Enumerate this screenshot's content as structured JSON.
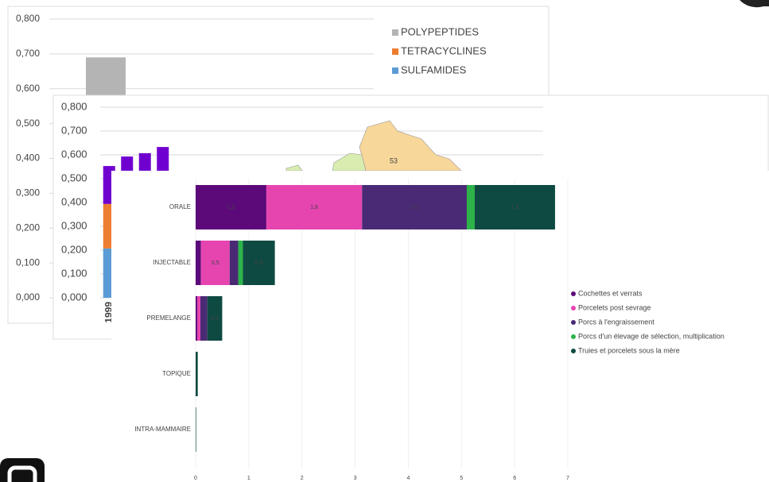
{
  "chart_data": [
    {
      "type": "bar",
      "categories": [
        null
      ],
      "series": [
        {
          "name": "SULFAMIDES",
          "color": "#5b9bd5",
          "values": [
            0.2
          ]
        },
        {
          "name": "TETRACYCLINES",
          "color": "#ed7d31",
          "values": [
            0.18
          ]
        },
        {
          "name": "POLYPEPTIDES",
          "color": "#b4b4b4",
          "values": [
            0.31
          ]
        }
      ],
      "ylim": [
        0,
        0.8
      ],
      "yticks": [
        {
          "value": 0,
          "label": "0,000"
        },
        {
          "value": 0.1,
          "label": "0,100"
        },
        {
          "value": 0.2,
          "label": "0,200"
        },
        {
          "value": 0.3,
          "label": "0,300"
        },
        {
          "value": 0.4,
          "label": "0,400"
        },
        {
          "value": 0.5,
          "label": "0,500"
        },
        {
          "value": 0.6,
          "label": "0,600"
        },
        {
          "value": 0.7,
          "label": "0,700"
        },
        {
          "value": 0.8,
          "label": "0,800"
        }
      ],
      "grid": true,
      "legend": "top-right"
    },
    {
      "type": "bar",
      "categories": [
        "1999",
        null,
        null,
        null
      ],
      "series": [
        {
          "color": "#5b9bd5",
          "values": [
            0.207,
            0.21,
            0.21,
            0.21
          ]
        },
        {
          "color": "#ed7d31",
          "values": [
            0.187,
            0.19,
            0.19,
            0.2
          ]
        },
        {
          "color": "#7000d0",
          "values": [
            0.159,
            0.193,
            0.207,
            0.223
          ]
        }
      ],
      "ylim": [
        0,
        0.8
      ],
      "yticks": [
        {
          "value": 0,
          "label": "0,000"
        },
        {
          "value": 0.1,
          "label": "0,100"
        },
        {
          "value": 0.2,
          "label": "0,200"
        },
        {
          "value": 0.3,
          "label": "0,300"
        },
        {
          "value": 0.4,
          "label": "0,400"
        },
        {
          "value": 0.5,
          "label": "0,500"
        },
        {
          "value": 0.6,
          "label": "0,600"
        },
        {
          "value": 0.7,
          "label": "0,700"
        },
        {
          "value": 0.8,
          "label": "0,800"
        }
      ],
      "grid": true
    },
    {
      "type": "hbar",
      "categories": [
        "ORALE",
        "INJECTABLE",
        "PREMELANGE",
        "TOPIQUE",
        "INTRA-MAMMAIRE"
      ],
      "series": [
        {
          "name": "Cochettes et verrats",
          "color": "#5c0a7a",
          "values": [
            1.33,
            0.1,
            0.03,
            0,
            0
          ],
          "value_labels": [
            "1,3",
            null,
            null,
            null,
            null
          ]
        },
        {
          "name": "Porcelets post sevrage",
          "color": "#e645b0",
          "values": [
            1.8,
            0.54,
            0.06,
            0,
            0
          ],
          "value_labels": [
            "1,8",
            "0,5",
            null,
            null,
            null
          ]
        },
        {
          "name": "Porcs à l'engraissement",
          "color": "#4a2a75",
          "values": [
            1.97,
            0.16,
            0.13,
            0,
            0
          ],
          "value_labels": [
            "2,0",
            null,
            null,
            null,
            null
          ]
        },
        {
          "name": "Porcs d'un élevage de sélection, multiplication",
          "color": "#2db34a",
          "values": [
            0.15,
            0.09,
            0,
            0,
            0
          ],
          "value_labels": [
            null,
            null,
            null,
            null,
            null
          ]
        },
        {
          "name": "Truies et porcelets sous la mère",
          "color": "#0e4a42",
          "values": [
            1.51,
            0.6,
            0.28,
            0.04,
            0.01
          ],
          "value_labels": [
            "1,5",
            "0,6",
            "0,3",
            null,
            null
          ]
        }
      ],
      "xlim": [
        0,
        7
      ],
      "xticks": [
        0,
        1,
        2,
        3,
        4,
        5,
        6,
        7
      ],
      "grid": true,
      "legend": "right"
    }
  ],
  "map": {
    "labels": [
      "53"
    ]
  }
}
